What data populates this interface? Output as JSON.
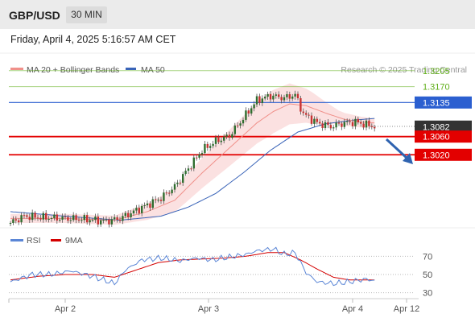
{
  "header": {
    "symbol": "GBP/USD",
    "timeframe": "30 MIN",
    "datetime": "Friday, April 4, 2025 5:16:57 AM CET"
  },
  "colors": {
    "ma20": "#f0908a",
    "ma50": "#3a64b8",
    "bollinger_fill": "#f8c8c8",
    "resistance_green": "#5fae18",
    "pivot_blue": "#2b5fd0",
    "support_red": "#e30000",
    "current_price_box": "#333333",
    "arrow": "#2f63b0",
    "rsi": "#5b86d6",
    "rsi_ma": "#d40000",
    "candle_up": "#2f6e2f",
    "candle_down": "#c83232"
  },
  "chart_data": [
    {
      "type": "candlestick",
      "legend": [
        {
          "name": "MA 20 + Bollinger Bands",
          "color": "#f0908a"
        },
        {
          "name": "MA 50",
          "color": "#3a64b8"
        }
      ],
      "source_label": "Research © 2025 Trading Central",
      "x_ticks": [
        "Apr 2",
        "Apr 3",
        "Apr 4",
        "Apr 12"
      ],
      "y_range": [
        1.285,
        1.3225
      ],
      "levels": [
        {
          "label": "1.3205",
          "value": 1.3205,
          "color": "#5fae18",
          "style": "text"
        },
        {
          "label": "1.3170",
          "value": 1.317,
          "color": "#5fae18",
          "style": "text"
        },
        {
          "label": "1.3135",
          "value": 1.3135,
          "color": "#2b5fd0",
          "style": "box"
        },
        {
          "label": "1.3082",
          "value": 1.3082,
          "color": "#333333",
          "style": "current"
        },
        {
          "label": "1.3060",
          "value": 1.306,
          "color": "#e30000",
          "style": "box"
        },
        {
          "label": "1.3020",
          "value": 1.302,
          "color": "#e30000",
          "style": "box"
        }
      ],
      "close_path": [
        [
          0,
          1.287
        ],
        [
          5,
          1.2885
        ],
        [
          12,
          1.2882
        ],
        [
          20,
          1.288
        ],
        [
          28,
          1.2878
        ],
        [
          35,
          1.2874
        ],
        [
          40,
          1.288
        ],
        [
          45,
          1.2895
        ],
        [
          50,
          1.291
        ],
        [
          55,
          1.2925
        ],
        [
          60,
          1.295
        ],
        [
          65,
          1.299
        ],
        [
          70,
          1.303
        ],
        [
          75,
          1.305
        ],
        [
          80,
          1.3062
        ],
        [
          85,
          1.31
        ],
        [
          90,
          1.314
        ],
        [
          95,
          1.315
        ],
        [
          100,
          1.3145
        ],
        [
          104,
          1.3152
        ],
        [
          107,
          1.311
        ],
        [
          112,
          1.309
        ],
        [
          117,
          1.3082
        ],
        [
          122,
          1.309
        ],
        [
          126,
          1.3092
        ],
        [
          130,
          1.3086
        ],
        [
          133,
          1.3082
        ]
      ],
      "ma20_path": [
        [
          0,
          1.288
        ],
        [
          20,
          1.288
        ],
        [
          38,
          1.2876
        ],
        [
          50,
          1.2895
        ],
        [
          60,
          1.292
        ],
        [
          70,
          1.298
        ],
        [
          80,
          1.3035
        ],
        [
          90,
          1.309
        ],
        [
          96,
          1.3115
        ],
        [
          102,
          1.3132
        ],
        [
          108,
          1.3128
        ],
        [
          115,
          1.3112
        ],
        [
          122,
          1.3098
        ],
        [
          128,
          1.3092
        ],
        [
          133,
          1.309
        ]
      ],
      "ma50_path": [
        [
          0,
          1.2895
        ],
        [
          20,
          1.2885
        ],
        [
          40,
          1.2876
        ],
        [
          55,
          1.2885
        ],
        [
          65,
          1.2905
        ],
        [
          75,
          1.2935
        ],
        [
          85,
          1.298
        ],
        [
          95,
          1.303
        ],
        [
          105,
          1.307
        ],
        [
          115,
          1.3088
        ],
        [
          125,
          1.3096
        ],
        [
          133,
          1.31
        ]
      ],
      "bollinger_halfwidth": [
        [
          0,
          0.001
        ],
        [
          38,
          0.001
        ],
        [
          50,
          0.0018
        ],
        [
          65,
          0.003
        ],
        [
          80,
          0.004
        ],
        [
          95,
          0.0048
        ],
        [
          102,
          0.0045
        ],
        [
          110,
          0.0035
        ],
        [
          120,
          0.0015
        ],
        [
          133,
          0.001
        ]
      ]
    },
    {
      "type": "line",
      "legend": [
        {
          "name": "RSI",
          "color": "#5b86d6"
        },
        {
          "name": "9MA",
          "color": "#d40000"
        }
      ],
      "y_ticks": [
        70,
        50,
        30
      ],
      "y_range": [
        20,
        80
      ],
      "rsi_path": [
        [
          0,
          42
        ],
        [
          8,
          50
        ],
        [
          15,
          50
        ],
        [
          22,
          54
        ],
        [
          30,
          48
        ],
        [
          38,
          40
        ],
        [
          42,
          55
        ],
        [
          48,
          66
        ],
        [
          55,
          68
        ],
        [
          62,
          65
        ],
        [
          68,
          68
        ],
        [
          74,
          66
        ],
        [
          80,
          69
        ],
        [
          86,
          72
        ],
        [
          90,
          76
        ],
        [
          96,
          78
        ],
        [
          100,
          72
        ],
        [
          104,
          74
        ],
        [
          108,
          52
        ],
        [
          112,
          42
        ],
        [
          118,
          40
        ],
        [
          124,
          42
        ],
        [
          130,
          45
        ],
        [
          133,
          43
        ]
      ],
      "rsi_ma_path": [
        [
          0,
          44
        ],
        [
          10,
          48
        ],
        [
          20,
          50
        ],
        [
          30,
          50
        ],
        [
          38,
          47
        ],
        [
          46,
          55
        ],
        [
          54,
          63
        ],
        [
          62,
          66
        ],
        [
          70,
          67
        ],
        [
          78,
          68
        ],
        [
          86,
          70
        ],
        [
          94,
          74
        ],
        [
          100,
          74
        ],
        [
          106,
          66
        ],
        [
          112,
          56
        ],
        [
          118,
          47
        ],
        [
          124,
          44
        ],
        [
          130,
          44
        ],
        [
          133,
          44
        ]
      ]
    }
  ]
}
